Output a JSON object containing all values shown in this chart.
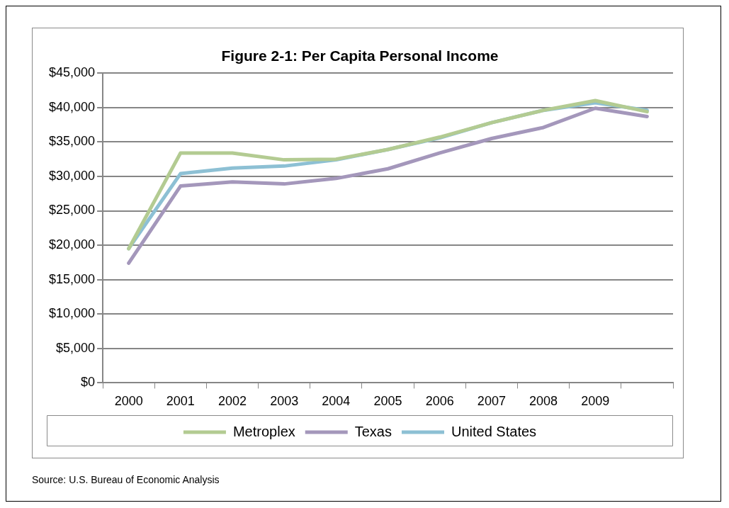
{
  "chart_data": {
    "type": "line",
    "title": "Figure 2-1: Per Capita Personal Income",
    "categories": [
      "2000",
      "2001",
      "2002",
      "2003",
      "2004",
      "2005",
      "2006",
      "2007",
      "2008",
      "2009",
      null
    ],
    "series": [
      {
        "name": "Metroplex",
        "color": "#b3cb92",
        "values": [
          19500,
          33400,
          33400,
          32400,
          32500,
          33900,
          35700,
          37800,
          39600,
          41000,
          39400
        ]
      },
      {
        "name": "Texas",
        "color": "#a497bb",
        "values": [
          17400,
          28600,
          29200,
          28900,
          29700,
          31100,
          33400,
          35500,
          37100,
          39900,
          38700
        ]
      },
      {
        "name": "United States",
        "color": "#8dc0d4",
        "values": [
          19500,
          30400,
          31200,
          31500,
          32400,
          33900,
          35600,
          37800,
          39600,
          40700,
          39600
        ]
      }
    ],
    "ylim": [
      0,
      45000
    ],
    "yticks": [
      {
        "value": 0,
        "label": "$0"
      },
      {
        "value": 5000,
        "label": "$5,000"
      },
      {
        "value": 10000,
        "label": "$10,000"
      },
      {
        "value": 15000,
        "label": "$15,000"
      },
      {
        "value": 20000,
        "label": "$20,000"
      },
      {
        "value": 25000,
        "label": "$25,000"
      },
      {
        "value": 30000,
        "label": "$30,000"
      },
      {
        "value": 35000,
        "label": "$35,000"
      },
      {
        "value": 40000,
        "label": "$40,000"
      },
      {
        "value": 45000,
        "label": "$45,000"
      }
    ],
    "grid": "y",
    "legend": "bottom",
    "marker": "none",
    "line_style": "solid",
    "annotations": [
      "Source:  U.S. Bureau of Economic Analysis"
    ]
  }
}
